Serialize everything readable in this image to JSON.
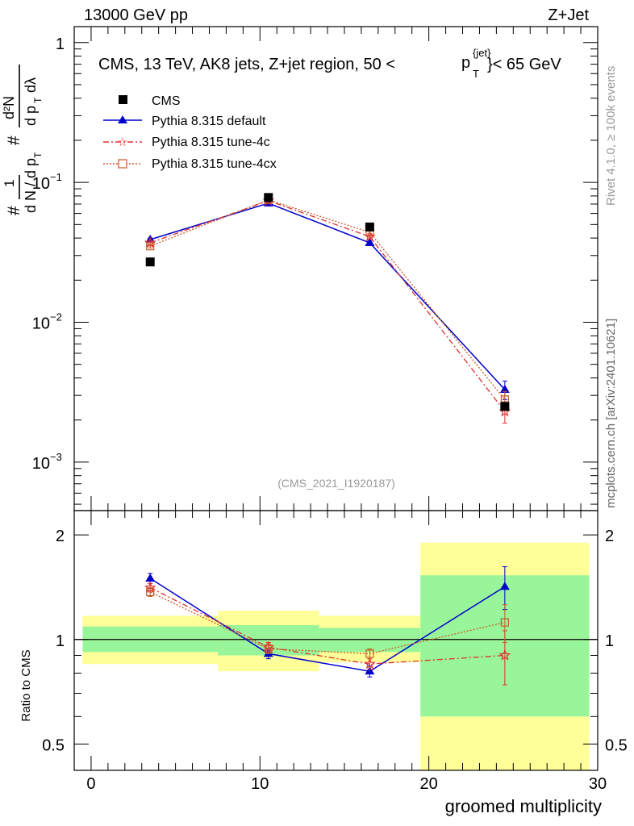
{
  "header": {
    "left": "13000 GeV pp",
    "right": "Z+Jet"
  },
  "side_labels": {
    "rivet": "Rivet 4.1.0, ≥ 100k events",
    "mcplots": "mcplots.cern.ch [arXiv:2401.10621]"
  },
  "colors": {
    "cms": "#000000",
    "default": "#0000cc",
    "tune4c": "#e03030",
    "tune4cx": "#c85a28",
    "band_inner": "#99f599",
    "band_outer": "#ffff99"
  },
  "chart_data": [
    {
      "type": "scatter",
      "title": "CMS, 13 TeV, AK8 jets, Z+jet region, 50 <",
      "title_pt": "p",
      "title_sub": "T",
      "title_sup": "{jet}",
      "title_tail": "}< 65 GeV",
      "ylabel": "1/N dN/dp_T d²N/dp_T dλ",
      "yscale": "log",
      "ylim": [
        0.00045,
        1.3
      ],
      "xlim": [
        -1,
        30
      ],
      "yticks": [
        {
          "value": 1,
          "label": "1"
        },
        {
          "value": 0.1,
          "label": "10",
          "exp": "−1"
        },
        {
          "value": 0.01,
          "label": "10",
          "exp": "−2"
        },
        {
          "value": 0.001,
          "label": "10",
          "exp": "−3"
        }
      ],
      "analysis_tag": "(CMS_2021_I1920187)",
      "legend": [
        "CMS",
        "Pythia 8.315 default",
        "Pythia 8.315 tune-4c",
        "Pythia 8.315 tune-4cx"
      ],
      "series": [
        {
          "name": "CMS",
          "x": [
            3.5,
            10.5,
            16.5,
            24.5
          ],
          "y": [
            0.027,
            0.078,
            0.048,
            0.0025
          ]
        },
        {
          "name": "Pythia 8.315 default",
          "x": [
            3.5,
            10.5,
            16.5,
            24.5
          ],
          "y": [
            0.039,
            0.071,
            0.037,
            0.0033
          ],
          "yerr": [
            0.001,
            0.0015,
            0.001,
            0.0005
          ]
        },
        {
          "name": "Pythia 8.315 tune-4c",
          "x": [
            3.5,
            10.5,
            16.5,
            24.5
          ],
          "y": [
            0.037,
            0.074,
            0.041,
            0.0023
          ],
          "yerr": [
            0.001,
            0.0015,
            0.001,
            0.0004
          ]
        },
        {
          "name": "Pythia 8.315 tune-4cx",
          "x": [
            3.5,
            10.5,
            16.5,
            24.5
          ],
          "y": [
            0.035,
            0.075,
            0.044,
            0.0028
          ],
          "yerr": [
            0.001,
            0.0015,
            0.001,
            0.0004
          ]
        }
      ]
    },
    {
      "type": "line",
      "ylabel": "Ratio to CMS",
      "xlabel": "groomed multiplicity",
      "yscale": "log",
      "ylim": [
        0.42,
        2.35
      ],
      "xlim": [
        -1,
        30
      ],
      "yticks": [
        0.5,
        1,
        2
      ],
      "xticks": [
        0,
        10,
        20,
        30
      ],
      "bands": [
        {
          "x0": -0.5,
          "x1": 7.5,
          "inner": [
            0.92,
            1.09
          ],
          "outer": [
            0.85,
            1.17
          ]
        },
        {
          "x0": 7.5,
          "x1": 13.5,
          "inner": [
            0.9,
            1.1
          ],
          "outer": [
            0.81,
            1.21
          ]
        },
        {
          "x0": 13.5,
          "x1": 19.5,
          "inner": [
            0.92,
            1.08
          ],
          "outer": [
            0.86,
            1.17
          ]
        },
        {
          "x0": 19.5,
          "x1": 29.5,
          "inner": [
            0.6,
            1.53
          ],
          "outer": [
            0.4,
            1.9
          ]
        }
      ],
      "series": [
        {
          "name": "Pythia 8.315 default",
          "x": [
            3.5,
            10.5,
            16.5,
            24.5
          ],
          "y": [
            1.5,
            0.91,
            0.81,
            1.42
          ],
          "yerr": [
            0.05,
            0.03,
            0.03,
            0.2
          ]
        },
        {
          "name": "Pythia 8.315 tune-4c",
          "x": [
            3.5,
            10.5,
            16.5,
            24.5
          ],
          "y": [
            1.41,
            0.95,
            0.85,
            0.9
          ],
          "yerr": [
            0.04,
            0.03,
            0.03,
            0.16
          ]
        },
        {
          "name": "Pythia 8.315 tune-4cx",
          "x": [
            3.5,
            10.5,
            16.5,
            24.5
          ],
          "y": [
            1.37,
            0.94,
            0.91,
            1.12
          ],
          "yerr": [
            0.04,
            0.03,
            0.03,
            0.14
          ]
        }
      ]
    }
  ]
}
